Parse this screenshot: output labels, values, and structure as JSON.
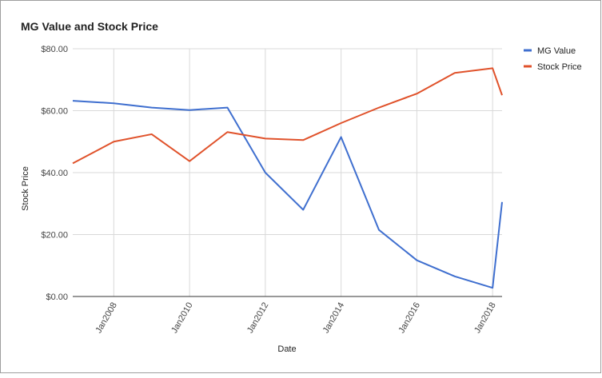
{
  "chart_data": {
    "type": "line",
    "title": "MG Value and Stock Price",
    "xlabel": "Date",
    "ylabel": "Stock Price",
    "x": [
      "2006-12",
      "2008-01",
      "2009-01",
      "2010-01",
      "2011-01",
      "2012-01",
      "2013-01",
      "2014-01",
      "2015-01",
      "2016-01",
      "2017-01",
      "2018-01",
      "2018-04"
    ],
    "series": [
      {
        "name": "MG Value",
        "color": "#3f6fcf",
        "values": [
          63.2,
          62.4,
          61.0,
          60.2,
          61.0,
          40.0,
          28.0,
          51.5,
          21.5,
          11.7,
          6.5,
          2.8,
          30.5
        ]
      },
      {
        "name": "Stock Price",
        "color": "#e0522b",
        "values": [
          43.0,
          50.0,
          52.4,
          43.7,
          53.1,
          51.0,
          50.5,
          56.0,
          61.0,
          65.5,
          72.2,
          73.7,
          65.0
        ]
      }
    ],
    "xlim": [
      "2006-12",
      "2018-04"
    ],
    "xticks": [
      {
        "value": "2008-01",
        "label": "Jan2008"
      },
      {
        "value": "2010-01",
        "label": "Jan2010"
      },
      {
        "value": "2012-01",
        "label": "Jan2012"
      },
      {
        "value": "2014-01",
        "label": "Jan2014"
      },
      {
        "value": "2016-01",
        "label": "Jan2016"
      },
      {
        "value": "2018-01",
        "label": "Jan2018"
      }
    ],
    "ylim": [
      0,
      80
    ],
    "yticks": [
      {
        "value": 0,
        "label": "$0.00"
      },
      {
        "value": 20,
        "label": "$20.00"
      },
      {
        "value": 40,
        "label": "$40.00"
      },
      {
        "value": 60,
        "label": "$60.00"
      },
      {
        "value": 80,
        "label": "$80.00"
      }
    ],
    "grid": true,
    "legend": "right"
  }
}
